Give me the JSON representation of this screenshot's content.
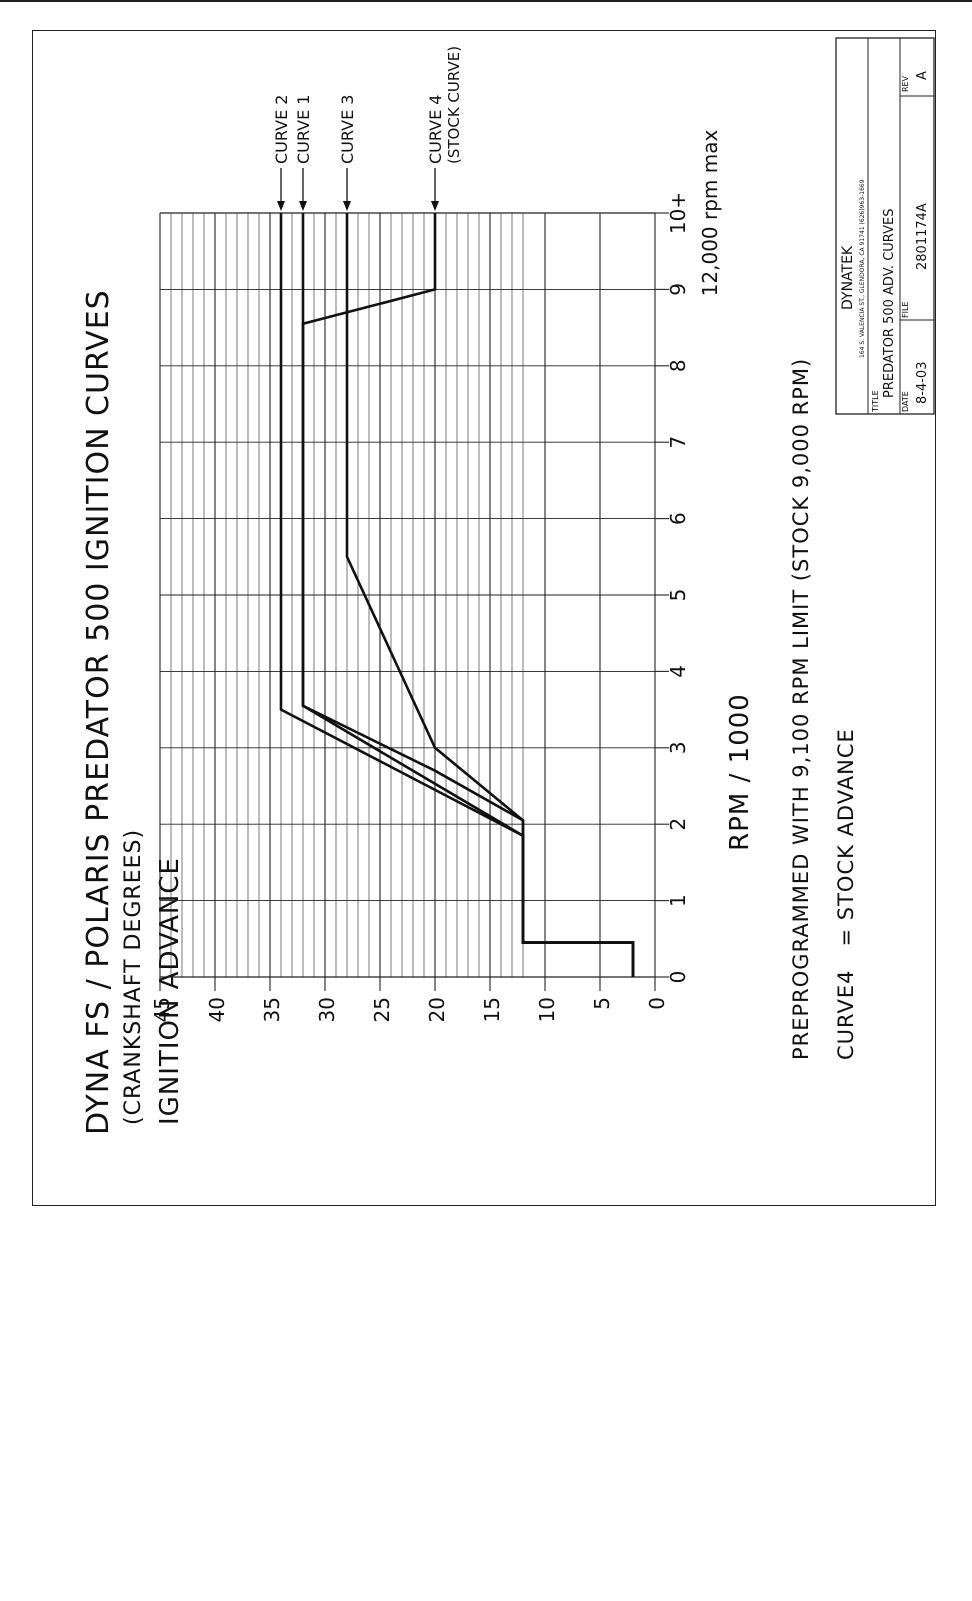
{
  "chart_data": {
    "type": "line",
    "title": "DYNA FS / POLARIS PREDATOR 500 IGNITION CURVES",
    "xlabel": "RPM / 1000",
    "ylabel_line1": "IGNITION ADVANCE",
    "ylabel_line2": "(CRANKSHAFT DEGREES)",
    "x_ticks": [
      "0",
      "1",
      "2",
      "3",
      "4",
      "5",
      "6",
      "7",
      "8",
      "9",
      "10+"
    ],
    "x_tick_note": "12,000 rpm max",
    "y_ticks": [
      "0",
      "5",
      "10",
      "15",
      "20",
      "25",
      "30",
      "35",
      "40",
      "45"
    ],
    "xlim": [
      0,
      10
    ],
    "ylim": [
      0,
      45
    ],
    "grid": true,
    "series": [
      {
        "name": "CURVE 2",
        "x": [
          0,
          0.45,
          0.45,
          1.85,
          3.5,
          10
        ],
        "y": [
          2,
          2,
          12,
          12,
          34,
          34
        ]
      },
      {
        "name": "CURVE 1",
        "x": [
          0,
          0.45,
          0.45,
          1.85,
          3.55,
          10
        ],
        "y": [
          2,
          2,
          12,
          12,
          32,
          32
        ]
      },
      {
        "name": "CURVE 3",
        "x": [
          0,
          0.45,
          0.45,
          2.05,
          3.0,
          5.5,
          10
        ],
        "y": [
          2,
          2,
          12,
          12,
          20,
          28,
          28
        ]
      },
      {
        "name": "CURVE 4",
        "x": [
          0,
          0.45,
          0.45,
          2.05,
          2.05,
          2.7,
          3.55,
          8.55,
          9.0,
          10
        ],
        "y": [
          2,
          2,
          12,
          12,
          12,
          20,
          32,
          32,
          20,
          20
        ]
      }
    ],
    "series_labels": [
      {
        "label": "CURVE 2",
        "sublabel": ""
      },
      {
        "label": "CURVE 1",
        "sublabel": ""
      },
      {
        "label": "CURVE 3",
        "sublabel": ""
      },
      {
        "label": "CURVE 4",
        "sublabel": "(STOCK CURVE)"
      }
    ],
    "notes": [
      "PREPROGRAMMED WITH 9,100 RPM LIMIT (STOCK 9,000 RPM)",
      "CURVE4   = STOCK ADVANCE"
    ]
  },
  "title_block": {
    "company": "DYNATEK",
    "address": "164 S. VALENCIA ST., GLENDORA, CA 91741  (626)963-1669",
    "title_label": "TITLE",
    "title_value": "PREDATOR 500 ADV. CURVES",
    "rev_label": "REV",
    "rev_value": "A",
    "date_label": "DATE",
    "date_value": "8-4-03",
    "file_label": "FILE",
    "file_value": "2801174A"
  }
}
